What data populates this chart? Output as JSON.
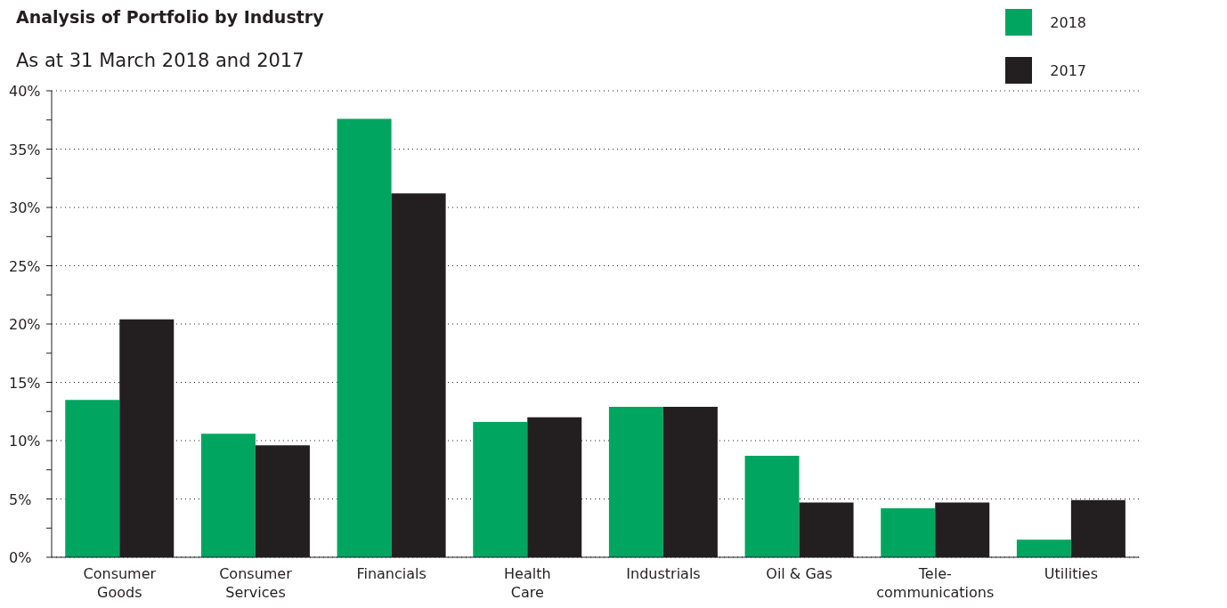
{
  "chart_data": {
    "type": "bar",
    "title": "Analysis of Portfolio by Industry",
    "subtitle": "As at 31 March 2018 and 2017",
    "categories": [
      "Consumer\nGoods",
      "Consumer\nServices",
      "Financials",
      "Health\nCare",
      "Industrials",
      "Oil & Gas",
      "Tele-\ncommunications",
      "Utilities"
    ],
    "series": [
      {
        "name": "2018",
        "color": "#00a660",
        "values": [
          13.5,
          10.6,
          37.6,
          11.6,
          12.9,
          8.7,
          4.2,
          1.5
        ]
      },
      {
        "name": "2017",
        "color": "#231f20",
        "values": [
          20.4,
          9.6,
          31.2,
          12.0,
          12.9,
          4.7,
          4.7,
          4.9
        ]
      }
    ],
    "ylim": [
      0,
      40
    ],
    "yticks": [
      {
        "value": 0,
        "label": "0%"
      },
      {
        "value": 2.5,
        "label": null
      },
      {
        "value": 5,
        "label": "5%"
      },
      {
        "value": 7.5,
        "label": null
      },
      {
        "value": 10,
        "label": "10%"
      },
      {
        "value": 12.5,
        "label": null
      },
      {
        "value": 15,
        "label": "15%"
      },
      {
        "value": 17.5,
        "label": null
      },
      {
        "value": 20,
        "label": "20%"
      },
      {
        "value": 22.5,
        "label": null
      },
      {
        "value": 25,
        "label": "25%"
      },
      {
        "value": 27.5,
        "label": null
      },
      {
        "value": 30,
        "label": "30%"
      },
      {
        "value": 32.5,
        "label": null
      },
      {
        "value": 35,
        "label": "35%"
      },
      {
        "value": 37.5,
        "label": null
      },
      {
        "value": 40,
        "label": "40%"
      }
    ],
    "grid": "y",
    "legend": "top right"
  }
}
